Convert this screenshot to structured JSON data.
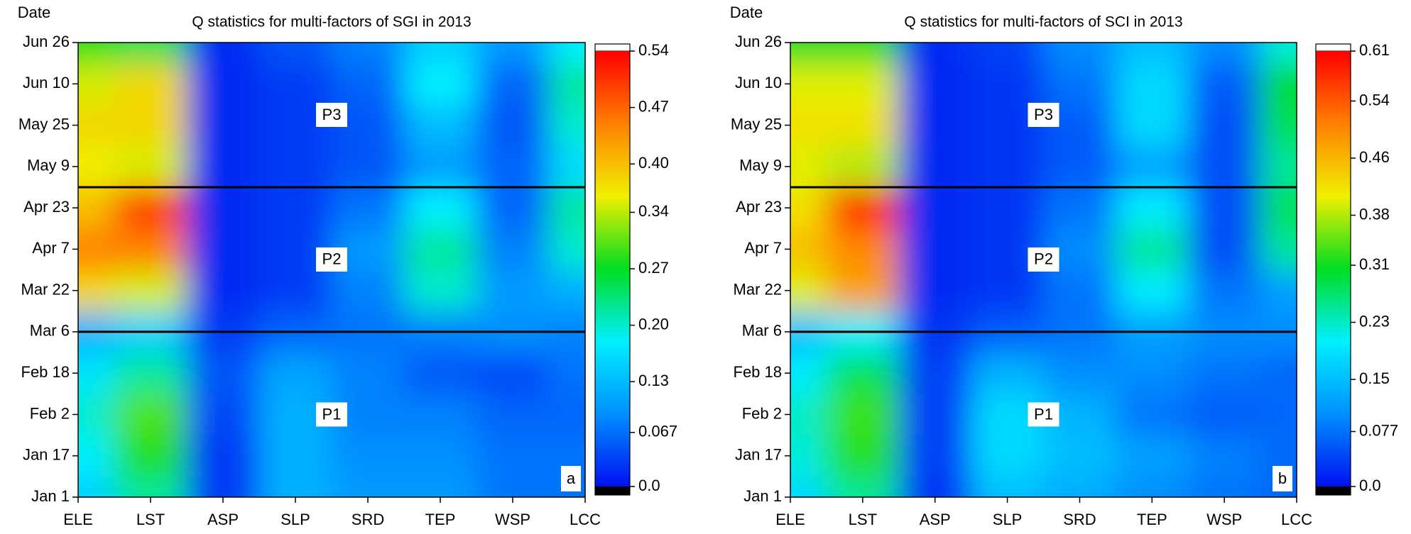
{
  "chart_data": [
    {
      "type": "heatmap",
      "title": "Q statistics for multi-factors of SGI in 2013",
      "ylabel": "Date",
      "panel_label": "a",
      "categories": [
        "ELE",
        "LST",
        "ASP",
        "SLP",
        "SRD",
        "TEP",
        "WSP",
        "LCC"
      ],
      "y": [
        1,
        17,
        33,
        49,
        65,
        81,
        97,
        113,
        129,
        145,
        161,
        177
      ],
      "ylim": [
        1,
        177
      ],
      "yticks": [
        {
          "value": 1,
          "label": "Jan 1"
        },
        {
          "value": 17,
          "label": "Jan 17"
        },
        {
          "value": 33,
          "label": "Feb 2"
        },
        {
          "value": 49,
          "label": "Feb 18"
        },
        {
          "value": 65,
          "label": "Mar 6"
        },
        {
          "value": 81,
          "label": "Mar 22"
        },
        {
          "value": 97,
          "label": "Apr 7"
        },
        {
          "value": 113,
          "label": "Apr 23"
        },
        {
          "value": 129,
          "label": "May 9"
        },
        {
          "value": 145,
          "label": "May 25"
        },
        {
          "value": 161,
          "label": "Jun 10"
        },
        {
          "value": 177,
          "label": "Jun 26"
        }
      ],
      "values": [
        [
          0.15,
          0.22,
          0.03,
          0.12,
          0.1,
          0.1,
          0.07,
          0.07
        ],
        [
          0.18,
          0.28,
          0.03,
          0.12,
          0.09,
          0.09,
          0.07,
          0.07
        ],
        [
          0.2,
          0.3,
          0.04,
          0.12,
          0.08,
          0.08,
          0.06,
          0.06
        ],
        [
          0.17,
          0.22,
          0.05,
          0.11,
          0.08,
          0.05,
          0.04,
          0.07
        ],
        [
          0.12,
          0.15,
          0.03,
          0.06,
          0.07,
          0.08,
          0.09,
          0.08
        ],
        [
          0.38,
          0.35,
          0.02,
          0.03,
          0.08,
          0.2,
          0.1,
          0.12
        ],
        [
          0.45,
          0.45,
          0.02,
          0.03,
          0.1,
          0.22,
          0.08,
          0.2
        ],
        [
          0.4,
          0.5,
          0.02,
          0.03,
          0.07,
          0.18,
          0.06,
          0.22
        ],
        [
          0.36,
          0.35,
          0.02,
          0.03,
          0.05,
          0.1,
          0.06,
          0.16
        ],
        [
          0.38,
          0.38,
          0.02,
          0.03,
          0.05,
          0.13,
          0.05,
          0.2
        ],
        [
          0.35,
          0.38,
          0.02,
          0.03,
          0.06,
          0.18,
          0.06,
          0.22
        ],
        [
          0.28,
          0.25,
          0.02,
          0.05,
          0.08,
          0.15,
          0.1,
          0.18
        ]
      ],
      "zlim": [
        0,
        0.54
      ],
      "zticks": [
        {
          "value": 0,
          "label": "0.0"
        },
        0.067,
        0.13,
        {
          "value": 0.2,
          "label": "0.20"
        },
        0.27,
        0.34,
        {
          "value": 0.4,
          "label": "0.40"
        },
        0.47,
        0.54
      ],
      "colorscale": [
        "#0010f0",
        "#0090ff",
        "#00f0ff",
        "#00dd20",
        "#f0f000",
        "#ff8000",
        "#ff0000"
      ],
      "periods": [
        "P1",
        "P2",
        "P3"
      ],
      "period_boundaries": [
        65,
        121
      ]
    },
    {
      "type": "heatmap",
      "title": "Q statistics for multi-factors of SCI in 2013",
      "ylabel": "Date",
      "panel_label": "b",
      "categories": [
        "ELE",
        "LST",
        "ASP",
        "SLP",
        "SRD",
        "TEP",
        "WSP",
        "LCC"
      ],
      "y": [
        1,
        17,
        33,
        49,
        65,
        81,
        97,
        113,
        129,
        145,
        161,
        177
      ],
      "ylim": [
        1,
        177
      ],
      "yticks": [
        {
          "value": 1,
          "label": "Jan 1"
        },
        {
          "value": 17,
          "label": "Jan 17"
        },
        {
          "value": 33,
          "label": "Feb 2"
        },
        {
          "value": 49,
          "label": "Feb 18"
        },
        {
          "value": 65,
          "label": "Mar 6"
        },
        {
          "value": 81,
          "label": "Mar 22"
        },
        {
          "value": 97,
          "label": "Apr 7"
        },
        {
          "value": 113,
          "label": "Apr 23"
        },
        {
          "value": 129,
          "label": "May 9"
        },
        {
          "value": 145,
          "label": "May 25"
        },
        {
          "value": 161,
          "label": "Jun 10"
        },
        {
          "value": 177,
          "label": "Jun 26"
        }
      ],
      "values": [
        [
          0.18,
          0.25,
          0.03,
          0.15,
          0.13,
          0.1,
          0.08,
          0.07
        ],
        [
          0.22,
          0.32,
          0.04,
          0.18,
          0.15,
          0.12,
          0.09,
          0.07
        ],
        [
          0.23,
          0.33,
          0.04,
          0.18,
          0.14,
          0.08,
          0.06,
          0.07
        ],
        [
          0.2,
          0.28,
          0.04,
          0.14,
          0.1,
          0.1,
          0.08,
          0.07
        ],
        [
          0.15,
          0.2,
          0.03,
          0.06,
          0.08,
          0.12,
          0.1,
          0.1
        ],
        [
          0.4,
          0.48,
          0.02,
          0.03,
          0.08,
          0.2,
          0.08,
          0.12
        ],
        [
          0.45,
          0.5,
          0.02,
          0.03,
          0.1,
          0.25,
          0.05,
          0.25
        ],
        [
          0.42,
          0.58,
          0.02,
          0.03,
          0.08,
          0.2,
          0.05,
          0.28
        ],
        [
          0.4,
          0.38,
          0.02,
          0.03,
          0.06,
          0.12,
          0.05,
          0.25
        ],
        [
          0.42,
          0.42,
          0.02,
          0.03,
          0.06,
          0.18,
          0.05,
          0.28
        ],
        [
          0.4,
          0.4,
          0.02,
          0.03,
          0.08,
          0.18,
          0.06,
          0.3
        ],
        [
          0.3,
          0.3,
          0.02,
          0.04,
          0.1,
          0.15,
          0.1,
          0.22
        ]
      ],
      "zlim": [
        0,
        0.61
      ],
      "zticks": [
        {
          "value": 0,
          "label": "0.0"
        },
        0.077,
        0.15,
        0.23,
        0.31,
        0.38,
        0.46,
        0.54,
        0.61
      ],
      "colorscale": [
        "#0010f0",
        "#0090ff",
        "#00f0ff",
        "#00dd20",
        "#f0f000",
        "#ff8000",
        "#ff0000"
      ],
      "periods": [
        "P1",
        "P2",
        "P3"
      ],
      "period_boundaries": [
        65,
        121
      ]
    }
  ]
}
